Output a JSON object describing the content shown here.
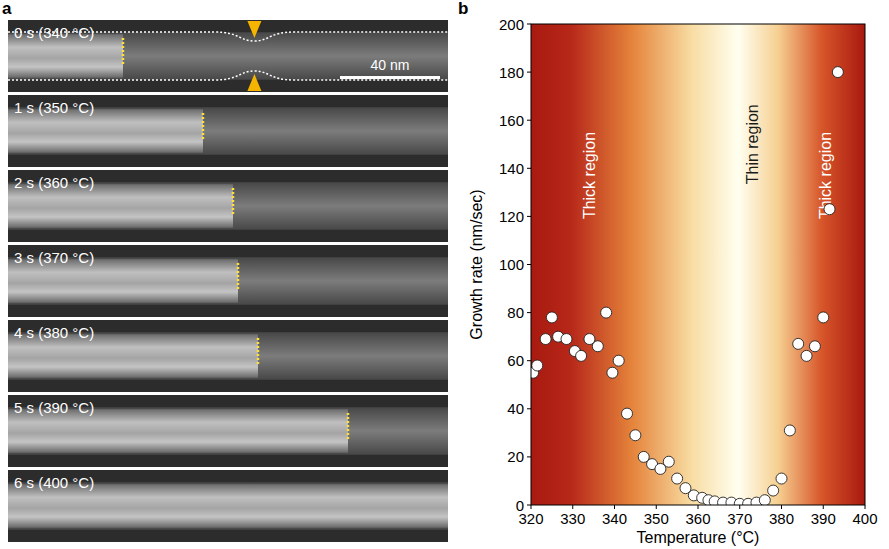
{
  "panel_labels": [
    "a",
    "b"
  ],
  "panel_a": {
    "field_nm": 176,
    "scale_bar_nm": 40,
    "scale_bar_label": "40 nm",
    "frames": [
      {
        "label": "0 s (340 °C)",
        "front_nm": 46
      },
      {
        "label": "1 s (350 °C)",
        "front_nm": 78
      },
      {
        "label": "2 s (360 °C)",
        "front_nm": 90
      },
      {
        "label": "3 s (370 °C)",
        "front_nm": 92
      },
      {
        "label": "4 s (380 °C)",
        "front_nm": 100
      },
      {
        "label": "5 s (390 °C)",
        "front_nm": 136
      },
      {
        "label": "6 s (400 °C)",
        "front_nm": null
      }
    ]
  },
  "chart_data": {
    "type": "scatter",
    "x_label": "Temperature (°C)",
    "y_label": "Growth rate (nm/sec)",
    "xlim": [
      320,
      400
    ],
    "ylim": [
      0,
      200
    ],
    "xticks": [
      320,
      330,
      340,
      350,
      360,
      370,
      380,
      390,
      400
    ],
    "yticks": [
      0,
      20,
      40,
      60,
      80,
      100,
      120,
      140,
      160,
      180,
      200
    ],
    "color": "#ffffff",
    "marker": "circle",
    "grid": false,
    "annotations": [
      {
        "text": "Thick region",
        "x": 334,
        "y": 137
      },
      {
        "text": "Thin region",
        "x": 373,
        "y": 150
      },
      {
        "text": "Thick region",
        "x": 390.5,
        "y": 137
      }
    ],
    "x": [
      320.5,
      321.5,
      323.5,
      325,
      326.5,
      328.5,
      330.5,
      332,
      334,
      336,
      338,
      339.5,
      341,
      343,
      345,
      347,
      349,
      351,
      353,
      355,
      357,
      359,
      361,
      362.5,
      364,
      366,
      368,
      370,
      372,
      374,
      376,
      378,
      380,
      382,
      384,
      386,
      388,
      390,
      391.5,
      393.5
    ],
    "values": [
      55,
      58,
      69,
      78,
      70,
      69,
      64,
      62,
      69,
      66,
      80,
      55,
      60,
      38,
      29,
      20,
      17,
      15,
      18,
      11,
      7,
      4,
      3,
      2,
      1.5,
      1,
      1,
      0.5,
      0.5,
      1,
      2,
      6,
      11,
      31,
      67,
      62,
      66,
      78,
      123,
      180
    ]
  }
}
